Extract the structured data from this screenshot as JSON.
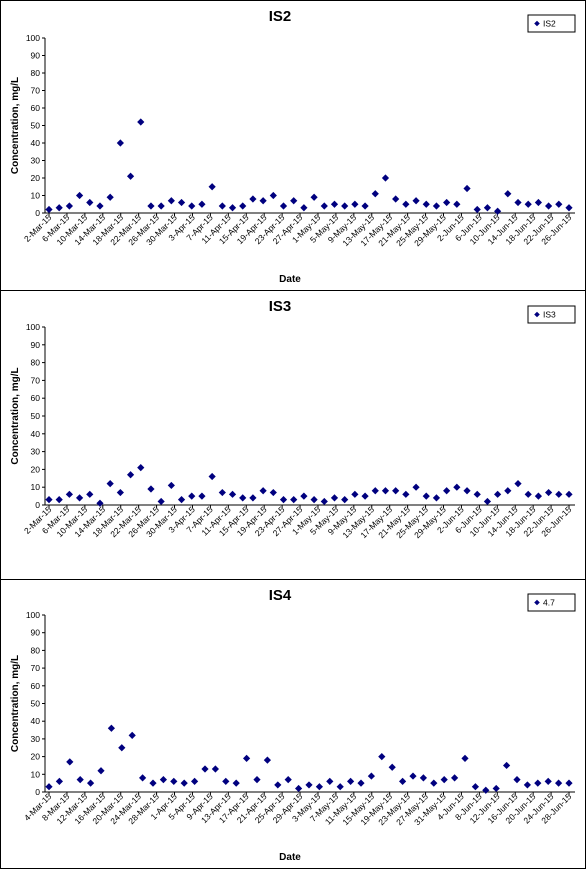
{
  "chart_data": [
    {
      "type": "scatter",
      "title": "IS2",
      "xlabel": "Date",
      "ylabel": "Concentration, mg/L",
      "ylim": [
        0,
        100
      ],
      "yticks": [
        "0",
        "10",
        "20",
        "30",
        "40",
        "50",
        "60",
        "70",
        "80",
        "90",
        "100"
      ],
      "xtick_labels": [
        "2-Mar-15",
        "6-Mar-15",
        "10-Mar-15",
        "14-Mar-15",
        "18-Mar-15",
        "22-Mar-15",
        "26-Mar-15",
        "30-Mar-15",
        "3-Apr-15",
        "7-Apr-15",
        "11-Apr-15",
        "15-Apr-15",
        "19-Apr-15",
        "23-Apr-15",
        "27-Apr-15",
        "1-May-15",
        "5-May-15",
        "9-May-15",
        "13-May-15",
        "17-May-15",
        "21-May-15",
        "25-May-15",
        "29-May-15",
        "2-Jun-15",
        "6-Jun-15",
        "10-Jun-15",
        "14-Jun-15",
        "18-Jun-15",
        "22-Jun-15",
        "26-Jun-15"
      ],
      "legend": {
        "position": "top-right",
        "entries": [
          "IS2"
        ]
      },
      "color": "#00007f",
      "series": [
        {
          "name": "IS2",
          "values": [
            2,
            3,
            4,
            10,
            6,
            4,
            9,
            40,
            21,
            52,
            4,
            4,
            7,
            6,
            4,
            5,
            15,
            4,
            3,
            4,
            8,
            7,
            10,
            4,
            7,
            3,
            9,
            4,
            5,
            4,
            5,
            4,
            11,
            20,
            8,
            5,
            7,
            5,
            4,
            6,
            5,
            14,
            2,
            3,
            1,
            11,
            6,
            5,
            6,
            4,
            5,
            3
          ]
        }
      ]
    },
    {
      "type": "scatter",
      "title": "IS3",
      "xlabel": "",
      "ylabel": "Concentration, mg/L",
      "ylim": [
        0,
        100
      ],
      "yticks": [
        "0",
        "10",
        "20",
        "30",
        "40",
        "50",
        "60",
        "70",
        "80",
        "90",
        "100"
      ],
      "xtick_labels": [
        "2-Mar-15",
        "6-Mar-15",
        "10-Mar-15",
        "14-Mar-15",
        "18-Mar-15",
        "22-Mar-15",
        "26-Mar-15",
        "30-Mar-15",
        "3-Apr-15",
        "7-Apr-15",
        "11-Apr-15",
        "15-Apr-15",
        "19-Apr-15",
        "23-Apr-15",
        "27-Apr-15",
        "1-May-15",
        "5-May-15",
        "9-May-15",
        "13-May-15",
        "17-May-15",
        "21-May-15",
        "25-May-15",
        "29-May-15",
        "2-Jun-15",
        "6-Jun-15",
        "10-Jun-15",
        "14-Jun-15",
        "18-Jun-15",
        "22-Jun-15",
        "26-Jun-15"
      ],
      "legend": {
        "position": "top-right",
        "entries": [
          "IS3"
        ]
      },
      "color": "#00007f",
      "series": [
        {
          "name": "IS3",
          "values": [
            3,
            3,
            6,
            4,
            6,
            1,
            12,
            7,
            17,
            21,
            9,
            2,
            11,
            3,
            5,
            5,
            16,
            7,
            6,
            4,
            4,
            8,
            7,
            3,
            3,
            5,
            3,
            2,
            4,
            3,
            6,
            5,
            8,
            8,
            8,
            6,
            10,
            5,
            4,
            8,
            10,
            8,
            6,
            2,
            6,
            8,
            12,
            6,
            5,
            7,
            6,
            6
          ]
        }
      ]
    },
    {
      "type": "scatter",
      "title": "IS4",
      "xlabel": "Date",
      "ylabel": "Concentration, mg/L",
      "ylim": [
        0,
        100
      ],
      "yticks": [
        "0",
        "10",
        "20",
        "30",
        "40",
        "50",
        "60",
        "70",
        "80",
        "90",
        "100"
      ],
      "xtick_labels": [
        "4-Mar-15",
        "8-Mar-15",
        "12-Mar-15",
        "16-Mar-15",
        "20-Mar-15",
        "24-Mar-15",
        "28-Mar-15",
        "1-Apr-15",
        "5-Apr-15",
        "9-Apr-15",
        "13-Apr-15",
        "17-Apr-15",
        "21-Apr-15",
        "25-Apr-15",
        "29-Apr-15",
        "3-May-15",
        "7-May-15",
        "11-May-15",
        "15-May-15",
        "19-May-15",
        "23-May-15",
        "27-May-15",
        "31-May-15",
        "4-Jun-15",
        "8-Jun-15",
        "12-Jun-15",
        "16-Jun-15",
        "20-Jun-15",
        "24-Jun-15",
        "28-Jun-15"
      ],
      "legend": {
        "position": "top-right",
        "entries": [
          "4.7"
        ]
      },
      "color": "#00007f",
      "series": [
        {
          "name": "4.7",
          "values": [
            3,
            6,
            17,
            7,
            5,
            12,
            36,
            25,
            32,
            8,
            5,
            7,
            6,
            5,
            6,
            13,
            13,
            6,
            5,
            19,
            7,
            18,
            4,
            7,
            2,
            4,
            3,
            6,
            3,
            6,
            5,
            9,
            20,
            14,
            6,
            9,
            8,
            5,
            7,
            8,
            19,
            3,
            1,
            2,
            15,
            7,
            4,
            5,
            6,
            5,
            5
          ]
        }
      ]
    }
  ]
}
